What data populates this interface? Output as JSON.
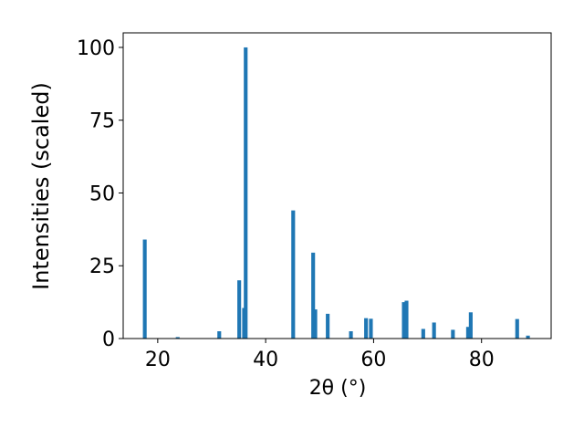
{
  "chart_data": {
    "type": "bar",
    "x": [
      17.6,
      23.7,
      31.4,
      35.1,
      36.0,
      36.3,
      45.1,
      48.8,
      49.2,
      51.5,
      55.8,
      58.6,
      59.5,
      65.6,
      66.1,
      69.2,
      71.2,
      74.7,
      77.5,
      78.0,
      86.6,
      88.6
    ],
    "values": [
      34,
      0.5,
      2.5,
      20,
      10.5,
      100,
      44,
      29.5,
      10,
      8.5,
      2.5,
      7,
      6.8,
      12.5,
      13,
      3.3,
      5.5,
      3,
      4,
      9,
      6.7,
      1
    ],
    "color": "#1f77b4",
    "xlabel": "2θ (°)",
    "ylabel": "Intensities (scaled)",
    "xlim": [
      13.6,
      92.9
    ],
    "xticks": [
      20,
      40,
      60,
      80
    ],
    "ylim": [
      0,
      105
    ],
    "yticks": [
      0,
      25,
      50,
      75,
      100
    ]
  }
}
